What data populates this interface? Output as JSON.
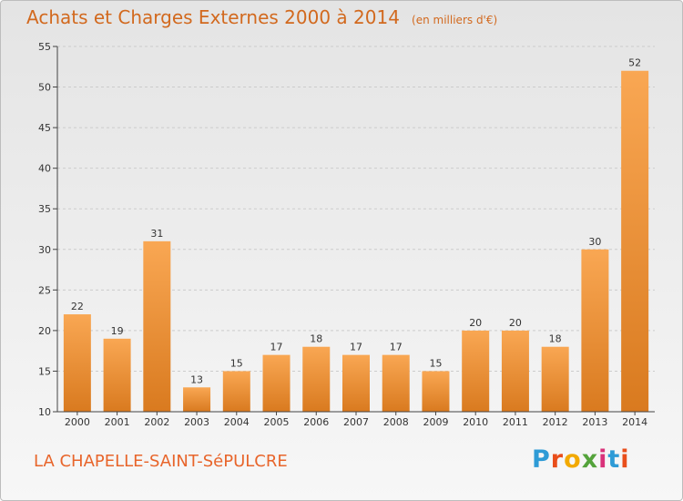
{
  "chart_data": {
    "type": "bar",
    "title": "Achats et Charges Externes 2000 à 2014",
    "unit_note": "(en milliers d'€)",
    "categories": [
      "2000",
      "2001",
      "2002",
      "2003",
      "2004",
      "2005",
      "2006",
      "2007",
      "2008",
      "2009",
      "2010",
      "2011",
      "2012",
      "2013",
      "2014"
    ],
    "values": [
      22,
      19,
      31,
      13,
      15,
      17,
      18,
      17,
      17,
      15,
      20,
      20,
      18,
      30,
      52
    ],
    "ylim": [
      10,
      55
    ],
    "yticks": [
      10,
      15,
      20,
      25,
      30,
      35,
      40,
      45,
      50,
      55
    ],
    "xlabel": "",
    "ylabel": "",
    "grid": true,
    "colors": {
      "bar_light": "#f9a753",
      "bar_dark": "#d97a1f",
      "grid": "#cccccc",
      "axis": "#444444"
    }
  },
  "footer": {
    "commune": "LA CHAPELLE-SAINT-SéPULCRE",
    "logo_text": "Proxiti",
    "logo_letter_colors": [
      "#2e9bd6",
      "#e94e1b",
      "#f2a900",
      "#54a33b",
      "#d9327a",
      "#2e9bd6",
      "#e94e1b"
    ]
  }
}
